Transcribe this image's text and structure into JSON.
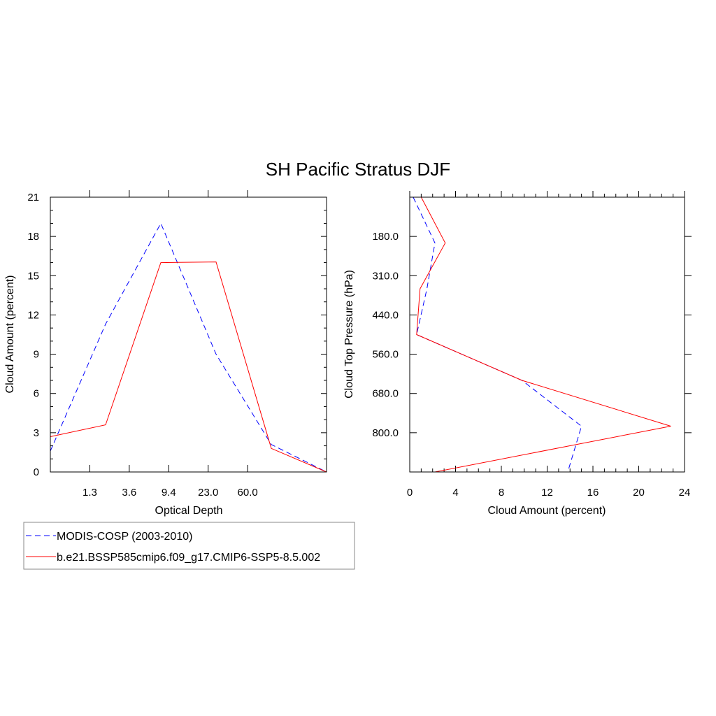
{
  "chart_data": {
    "title": "SH Pacific Stratus DJF",
    "colors": {
      "obs": "#0000ff",
      "model": "#ff0000"
    },
    "series_names": [
      "MODIS-COSP (2003-2010)",
      "b.e21.BSSP585cmip6.f09_g17.CMIP6-SSP5-8.5.002"
    ],
    "legend_placement": "bottom-left",
    "panels": [
      {
        "type": "line",
        "xlabel": "Optical Depth",
        "ylabel": "Cloud Amount (percent)",
        "x_tick_labels": [
          "1.3",
          "3.6",
          "9.4",
          "23.0",
          "60.0"
        ],
        "y_ticks": [
          0,
          3,
          6,
          9,
          12,
          15,
          18,
          21
        ],
        "ylim": [
          0,
          21
        ],
        "x_bins": 7,
        "series": [
          {
            "name": "MODIS-COSP (2003-2010)",
            "style": "dashed",
            "values": [
              1.6,
              11.3,
              19.0,
              9.0,
              2.1,
              0.0
            ]
          },
          {
            "name": "b.e21.BSSP585cmip6.f09_g17.CMIP6-SSP5-8.5.002",
            "style": "solid",
            "values": [
              2.7,
              3.6,
              16.0,
              16.05,
              1.8,
              0.0
            ]
          }
        ]
      },
      {
        "type": "line",
        "xlabel": "Cloud Amount (percent)",
        "ylabel": "Cloud Top Pressure (hPa)",
        "x_ticks": [
          0,
          4,
          8,
          12,
          16,
          20,
          24
        ],
        "xlim": [
          0,
          24
        ],
        "y_tick_labels": [
          "180.0",
          "310.0",
          "440.0",
          "560.0",
          "680.0",
          "800.0"
        ],
        "y_bins": 7,
        "series": [
          {
            "name": "MODIS-COSP (2003-2010)",
            "style": "dashed",
            "values": [
              0.3,
              2.2,
              1.5,
              0.6,
              9.8,
              15.0,
              13.8
            ]
          },
          {
            "name": "b.e21.BSSP585cmip6.f09_g17.CMIP6-SSP5-8.5.002",
            "style": "solid",
            "values": [
              1.0,
              3.1,
              0.9,
              0.6,
              9.8,
              22.8,
              2.2
            ]
          }
        ]
      }
    ]
  }
}
